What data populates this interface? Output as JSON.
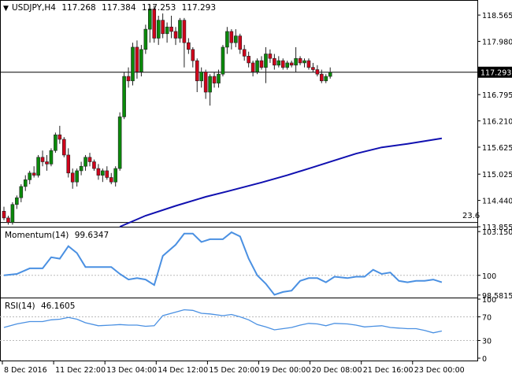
{
  "colors": {
    "bull": "#0a8a0a",
    "bear": "#d0021b",
    "wick": "#222222",
    "ma": "#1010b0",
    "indicator": "#4a90e2",
    "grid": "#bbbbbb",
    "axis": "#000000",
    "priceLabelBg": "#000000",
    "priceLabelText": "#ffffff"
  },
  "chart_data": [
    {
      "type": "candlestick",
      "symbol": "USDJPY,H4",
      "ohlc": [
        "117.268",
        "117.384",
        "117.253",
        "117.293"
      ],
      "current_price": 117.293,
      "current_price_label": "117.293",
      "level_line": 113.95,
      "level_label": "23.6",
      "ylim": [
        113.855,
        118.9
      ],
      "yticks": [
        {
          "value": 118.565,
          "label": "118.565"
        },
        {
          "value": 117.98,
          "label": "117.980"
        },
        {
          "value": 116.795,
          "label": "116.795"
        },
        {
          "value": 116.21,
          "label": "116.210"
        },
        {
          "value": 115.625,
          "label": "115.625"
        },
        {
          "value": 115.025,
          "label": "115.025"
        },
        {
          "value": 114.44,
          "label": "114.440"
        },
        {
          "value": 113.855,
          "label": "113.855"
        }
      ],
      "candles": [
        [
          114.2,
          114.3,
          114.0,
          114.05
        ],
        [
          114.05,
          114.1,
          113.9,
          113.95
        ],
        [
          113.95,
          114.4,
          113.9,
          114.35
        ],
        [
          114.35,
          114.55,
          114.25,
          114.5
        ],
        [
          114.5,
          114.8,
          114.4,
          114.75
        ],
        [
          114.75,
          115.0,
          114.65,
          114.9
        ],
        [
          114.9,
          115.1,
          114.8,
          115.05
        ],
        [
          115.05,
          115.2,
          114.95,
          115.0
        ],
        [
          115.0,
          115.45,
          114.95,
          115.4
        ],
        [
          115.4,
          115.55,
          115.2,
          115.3
        ],
        [
          115.3,
          115.45,
          115.1,
          115.25
        ],
        [
          115.25,
          115.6,
          115.2,
          115.55
        ],
        [
          115.55,
          115.95,
          115.5,
          115.9
        ],
        [
          115.9,
          116.1,
          115.7,
          115.8
        ],
        [
          115.8,
          115.85,
          115.4,
          115.45
        ],
        [
          115.45,
          115.6,
          114.95,
          115.05
        ],
        [
          115.05,
          115.15,
          114.7,
          114.85
        ],
        [
          114.85,
          115.15,
          114.75,
          115.1
        ],
        [
          115.1,
          115.3,
          115.0,
          115.2
        ],
        [
          115.2,
          115.45,
          115.1,
          115.4
        ],
        [
          115.4,
          115.5,
          115.2,
          115.3
        ],
        [
          115.3,
          115.35,
          115.1,
          115.15
        ],
        [
          115.15,
          115.25,
          114.9,
          115.0
        ],
        [
          115.0,
          115.15,
          114.85,
          115.1
        ],
        [
          115.1,
          115.2,
          114.9,
          114.95
        ],
        [
          114.95,
          115.05,
          114.8,
          114.85
        ],
        [
          114.85,
          115.2,
          114.75,
          115.15
        ],
        [
          115.15,
          116.4,
          115.1,
          116.3
        ],
        [
          116.3,
          117.3,
          116.25,
          117.2
        ],
        [
          117.2,
          117.4,
          116.95,
          117.1
        ],
        [
          117.1,
          117.95,
          117.0,
          117.85
        ],
        [
          117.85,
          118.0,
          117.15,
          117.3
        ],
        [
          117.3,
          117.9,
          117.2,
          117.8
        ],
        [
          117.8,
          118.35,
          117.7,
          118.25
        ],
        [
          118.25,
          118.8,
          117.95,
          118.7
        ],
        [
          118.7,
          118.78,
          117.95,
          118.05
        ],
        [
          118.05,
          118.55,
          117.9,
          118.45
        ],
        [
          118.45,
          118.6,
          118.05,
          118.15
        ],
        [
          118.15,
          118.4,
          117.95,
          118.3
        ],
        [
          118.3,
          118.55,
          118.05,
          118.2
        ],
        [
          118.2,
          118.3,
          117.9,
          118.05
        ],
        [
          118.05,
          118.5,
          117.95,
          118.45
        ],
        [
          118.45,
          118.5,
          117.4,
          117.95
        ],
        [
          117.95,
          118.05,
          117.7,
          117.8
        ],
        [
          117.8,
          117.85,
          117.4,
          117.55
        ],
        [
          117.55,
          117.6,
          116.85,
          117.1
        ],
        [
          117.1,
          117.4,
          116.95,
          117.3
        ],
        [
          117.3,
          117.35,
          116.7,
          116.85
        ],
        [
          116.85,
          117.25,
          116.55,
          117.2
        ],
        [
          117.2,
          117.3,
          116.95,
          117.05
        ],
        [
          117.05,
          117.35,
          116.95,
          117.25
        ],
        [
          117.25,
          117.9,
          117.2,
          117.85
        ],
        [
          117.85,
          118.3,
          117.7,
          118.2
        ],
        [
          118.2,
          118.25,
          117.8,
          117.95
        ],
        [
          117.95,
          118.25,
          117.85,
          118.1
        ],
        [
          118.1,
          118.15,
          117.7,
          117.8
        ],
        [
          117.8,
          117.9,
          117.55,
          117.65
        ],
        [
          117.65,
          117.75,
          117.4,
          117.5
        ],
        [
          117.5,
          117.55,
          117.2,
          117.3
        ],
        [
          117.3,
          117.6,
          117.25,
          117.55
        ],
        [
          117.55,
          117.65,
          117.35,
          117.4
        ],
        [
          117.4,
          117.85,
          117.05,
          117.7
        ],
        [
          117.7,
          117.8,
          117.5,
          117.6
        ],
        [
          117.6,
          117.7,
          117.35,
          117.45
        ],
        [
          117.45,
          117.65,
          117.4,
          117.55
        ],
        [
          117.55,
          117.6,
          117.35,
          117.4
        ],
        [
          117.4,
          117.55,
          117.35,
          117.5
        ],
        [
          117.5,
          117.55,
          117.4,
          117.45
        ],
        [
          117.45,
          117.85,
          117.3,
          117.6
        ],
        [
          117.6,
          117.65,
          117.45,
          117.5
        ],
        [
          117.5,
          117.6,
          117.4,
          117.55
        ],
        [
          117.55,
          117.6,
          117.35,
          117.4
        ],
        [
          117.4,
          117.5,
          117.3,
          117.35
        ],
        [
          117.35,
          117.45,
          117.2,
          117.25
        ],
        [
          117.25,
          117.35,
          117.05,
          117.1
        ],
        [
          117.1,
          117.25,
          117.05,
          117.2
        ],
        [
          117.2,
          117.4,
          117.15,
          117.29
        ]
      ],
      "moving_average": [
        [
          27,
          113.855
        ],
        [
          33,
          114.1
        ],
        [
          40,
          114.32
        ],
        [
          47,
          114.52
        ],
        [
          52,
          114.64
        ],
        [
          60,
          114.84
        ],
        [
          66,
          115.0
        ],
        [
          72,
          115.18
        ],
        [
          78,
          115.36
        ],
        [
          82,
          115.48
        ],
        [
          88,
          115.62
        ],
        [
          94,
          115.7
        ],
        [
          100,
          115.79
        ],
        [
          102,
          115.82
        ]
      ]
    },
    {
      "type": "line",
      "name": "Momentum(14)",
      "value_label": "99.6347",
      "ylim": [
        98.4,
        103.5
      ],
      "yticks": [
        {
          "value": 103.1506,
          "label": "103.1506"
        },
        {
          "value": 100,
          "label": "100"
        },
        {
          "value": 98.5815,
          "label": "98.5815"
        }
      ],
      "reference_line": 100,
      "points": [
        [
          0,
          100.0
        ],
        [
          3,
          100.1
        ],
        [
          6,
          100.5
        ],
        [
          9,
          100.5
        ],
        [
          11,
          101.3
        ],
        [
          13,
          101.2
        ],
        [
          15,
          102.1
        ],
        [
          17,
          101.6
        ],
        [
          19,
          100.6
        ],
        [
          22,
          100.6
        ],
        [
          25,
          100.6
        ],
        [
          27,
          100.1
        ],
        [
          29,
          99.7
        ],
        [
          31,
          99.8
        ],
        [
          33,
          99.7
        ],
        [
          35,
          99.3
        ],
        [
          37,
          101.4
        ],
        [
          40,
          102.2
        ],
        [
          42,
          103.0
        ],
        [
          44,
          103.0
        ],
        [
          46,
          102.4
        ],
        [
          48,
          102.6
        ],
        [
          51,
          102.6
        ],
        [
          53,
          103.1
        ],
        [
          55,
          102.8
        ],
        [
          57,
          101.2
        ],
        [
          59,
          100.0
        ],
        [
          61,
          99.4
        ],
        [
          63,
          98.6
        ],
        [
          65,
          98.8
        ],
        [
          67,
          98.9
        ],
        [
          69,
          99.6
        ],
        [
          71,
          99.8
        ],
        [
          73,
          99.8
        ],
        [
          75,
          99.5
        ],
        [
          77,
          99.9
        ],
        [
          80,
          99.8
        ],
        [
          82,
          99.9
        ],
        [
          84,
          99.9
        ],
        [
          86,
          100.4
        ],
        [
          88,
          100.1
        ],
        [
          90,
          100.2
        ],
        [
          92,
          99.6
        ],
        [
          94,
          99.5
        ],
        [
          96,
          99.6
        ],
        [
          98,
          99.6
        ],
        [
          100,
          99.7
        ],
        [
          102,
          99.5
        ]
      ]
    },
    {
      "type": "line",
      "name": "RSI(14)",
      "value_label": "46.1605",
      "ylim": [
        0,
        100
      ],
      "yticks": [
        {
          "value": 100,
          "label": "100"
        },
        {
          "value": 70,
          "label": "70"
        },
        {
          "value": 30,
          "label": "30"
        },
        {
          "value": 0,
          "label": "0"
        }
      ],
      "grid_lines": [
        70,
        30
      ],
      "points": [
        [
          0,
          52
        ],
        [
          3,
          58
        ],
        [
          6,
          62
        ],
        [
          9,
          62
        ],
        [
          11,
          65
        ],
        [
          13,
          66
        ],
        [
          15,
          69
        ],
        [
          17,
          66
        ],
        [
          19,
          60
        ],
        [
          22,
          55
        ],
        [
          25,
          56
        ],
        [
          27,
          57
        ],
        [
          29,
          56
        ],
        [
          31,
          56
        ],
        [
          33,
          54
        ],
        [
          35,
          55
        ],
        [
          37,
          72
        ],
        [
          40,
          78
        ],
        [
          42,
          82
        ],
        [
          44,
          81
        ],
        [
          46,
          76
        ],
        [
          48,
          75
        ],
        [
          51,
          72
        ],
        [
          53,
          74
        ],
        [
          55,
          70
        ],
        [
          57,
          65
        ],
        [
          59,
          57
        ],
        [
          61,
          53
        ],
        [
          63,
          48
        ],
        [
          65,
          50
        ],
        [
          67,
          52
        ],
        [
          69,
          56
        ],
        [
          71,
          59
        ],
        [
          73,
          58
        ],
        [
          75,
          55
        ],
        [
          77,
          59
        ],
        [
          80,
          58
        ],
        [
          82,
          56
        ],
        [
          84,
          53
        ],
        [
          86,
          54
        ],
        [
          88,
          55
        ],
        [
          90,
          52
        ],
        [
          92,
          51
        ],
        [
          94,
          50
        ],
        [
          96,
          50
        ],
        [
          98,
          47
        ],
        [
          100,
          43
        ],
        [
          102,
          46
        ]
      ]
    }
  ],
  "x_axis": {
    "labels": [
      {
        "index": 0,
        "label": "8 Dec 2016"
      },
      {
        "index": 14,
        "label": "11 Dec 22:00"
      },
      {
        "index": 28,
        "label": "13 Dec 04:00"
      },
      {
        "index": 42,
        "label": "14 Dec 12:00"
      },
      {
        "index": 56,
        "label": "15 Dec 20:00"
      },
      {
        "index": 70,
        "label": "19 Dec 00:00"
      },
      {
        "index": 84,
        "label": "20 Dec 08:00"
      },
      {
        "index": 98,
        "label": "21 Dec 16:00"
      },
      {
        "index": 112,
        "label": "23 Dec 00:00"
      }
    ]
  }
}
